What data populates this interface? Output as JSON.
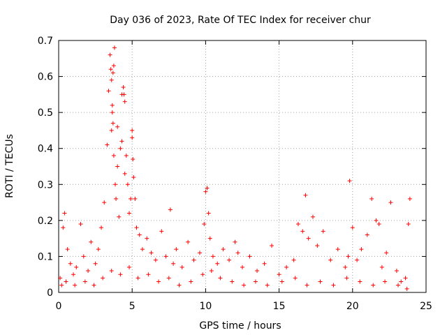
{
  "chart_data": {
    "type": "scatter",
    "title": "Day 036 of 2023, Rate Of TEC Index for receiver chur",
    "xlabel": "GPS time / hours",
    "ylabel": "ROTI / TECUs",
    "xlim": [
      0,
      25
    ],
    "ylim": [
      0,
      0.7
    ],
    "xticks": [
      0,
      5,
      10,
      15,
      20,
      25
    ],
    "yticks": [
      0,
      0.1,
      0.2,
      0.3,
      0.4,
      0.5,
      0.6,
      0.7
    ],
    "xtick_labels": [
      "0",
      "5",
      "10",
      "15",
      "20",
      "25"
    ],
    "ytick_labels": [
      "0",
      "0.1",
      "0.2",
      "0.3",
      "0.4",
      "0.5",
      "0.6",
      "0.7"
    ],
    "grid": true,
    "marker": "+",
    "color": "#ff0000",
    "series": [
      {
        "name": "ROTI",
        "x": [
          0.1,
          0.3,
          0.4,
          0.6,
          0.8,
          1.0,
          1.2,
          1.5,
          1.7,
          2.0,
          2.2,
          2.5,
          2.7,
          2.9,
          3.1,
          3.3,
          3.4,
          3.5,
          3.55,
          3.6,
          3.65,
          3.7,
          3.75,
          3.8,
          3.85,
          3.9,
          4.0,
          4.1,
          4.2,
          4.3,
          4.4,
          4.5,
          4.6,
          4.7,
          4.8,
          4.9,
          5.0,
          5.05,
          5.1,
          5.2,
          5.3,
          5.5,
          5.7,
          6.0,
          6.3,
          6.6,
          7.0,
          7.3,
          7.6,
          7.8,
          8.0,
          8.4,
          8.8,
          9.2,
          9.6,
          9.9,
          10.0,
          10.1,
          10.2,
          10.3,
          10.5,
          10.8,
          11.2,
          11.6,
          12.0,
          12.2,
          12.5,
          13.0,
          13.5,
          14.0,
          14.5,
          15.0,
          15.5,
          16.0,
          16.3,
          16.6,
          16.8,
          17.0,
          17.3,
          17.6,
          18.0,
          18.5,
          19.0,
          19.5,
          19.7,
          19.8,
          20.0,
          20.3,
          20.6,
          21.0,
          21.3,
          21.6,
          21.8,
          22.0,
          22.3,
          22.6,
          23.0,
          23.3,
          23.6,
          23.8,
          23.9,
          0.2,
          0.5,
          1.1,
          1.8,
          2.4,
          3.0,
          3.6,
          4.2,
          4.8,
          5.4,
          6.1,
          6.8,
          7.5,
          8.2,
          9.0,
          9.8,
          10.4,
          11.0,
          11.8,
          12.6,
          13.4,
          14.2,
          15.2,
          16.1,
          16.9,
          17.8,
          18.7,
          19.6,
          20.5,
          21.4,
          22.2,
          23.1,
          23.7,
          3.7,
          3.75,
          4.45,
          4.5,
          5.0,
          3.6,
          3.65,
          4.0,
          4.3
        ],
        "y": [
          0.04,
          0.18,
          0.22,
          0.12,
          0.08,
          0.05,
          0.07,
          0.19,
          0.1,
          0.06,
          0.14,
          0.08,
          0.12,
          0.18,
          0.25,
          0.41,
          0.56,
          0.66,
          0.62,
          0.45,
          0.52,
          0.47,
          0.38,
          0.68,
          0.3,
          0.26,
          0.35,
          0.21,
          0.4,
          0.55,
          0.57,
          0.33,
          0.38,
          0.3,
          0.22,
          0.26,
          0.45,
          0.37,
          0.32,
          0.26,
          0.18,
          0.16,
          0.12,
          0.15,
          0.11,
          0.09,
          0.17,
          0.1,
          0.23,
          0.08,
          0.12,
          0.07,
          0.14,
          0.09,
          0.11,
          0.19,
          0.28,
          0.29,
          0.22,
          0.15,
          0.1,
          0.08,
          0.12,
          0.09,
          0.14,
          0.11,
          0.07,
          0.1,
          0.06,
          0.08,
          0.13,
          0.05,
          0.07,
          0.09,
          0.19,
          0.17,
          0.27,
          0.15,
          0.21,
          0.13,
          0.17,
          0.09,
          0.12,
          0.07,
          0.1,
          0.31,
          0.18,
          0.09,
          0.12,
          0.16,
          0.26,
          0.2,
          0.19,
          0.07,
          0.11,
          0.25,
          0.06,
          0.03,
          0.04,
          0.19,
          0.26,
          0.02,
          0.03,
          0.02,
          0.03,
          0.02,
          0.04,
          0.06,
          0.05,
          0.07,
          0.04,
          0.05,
          0.03,
          0.04,
          0.02,
          0.03,
          0.05,
          0.06,
          0.04,
          0.03,
          0.02,
          0.03,
          0.02,
          0.03,
          0.04,
          0.02,
          0.03,
          0.02,
          0.04,
          0.03,
          0.02,
          0.03,
          0.02,
          0.01,
          0.61,
          0.63,
          0.55,
          0.53,
          0.43,
          0.59,
          0.5,
          0.46,
          0.42
        ]
      }
    ]
  }
}
